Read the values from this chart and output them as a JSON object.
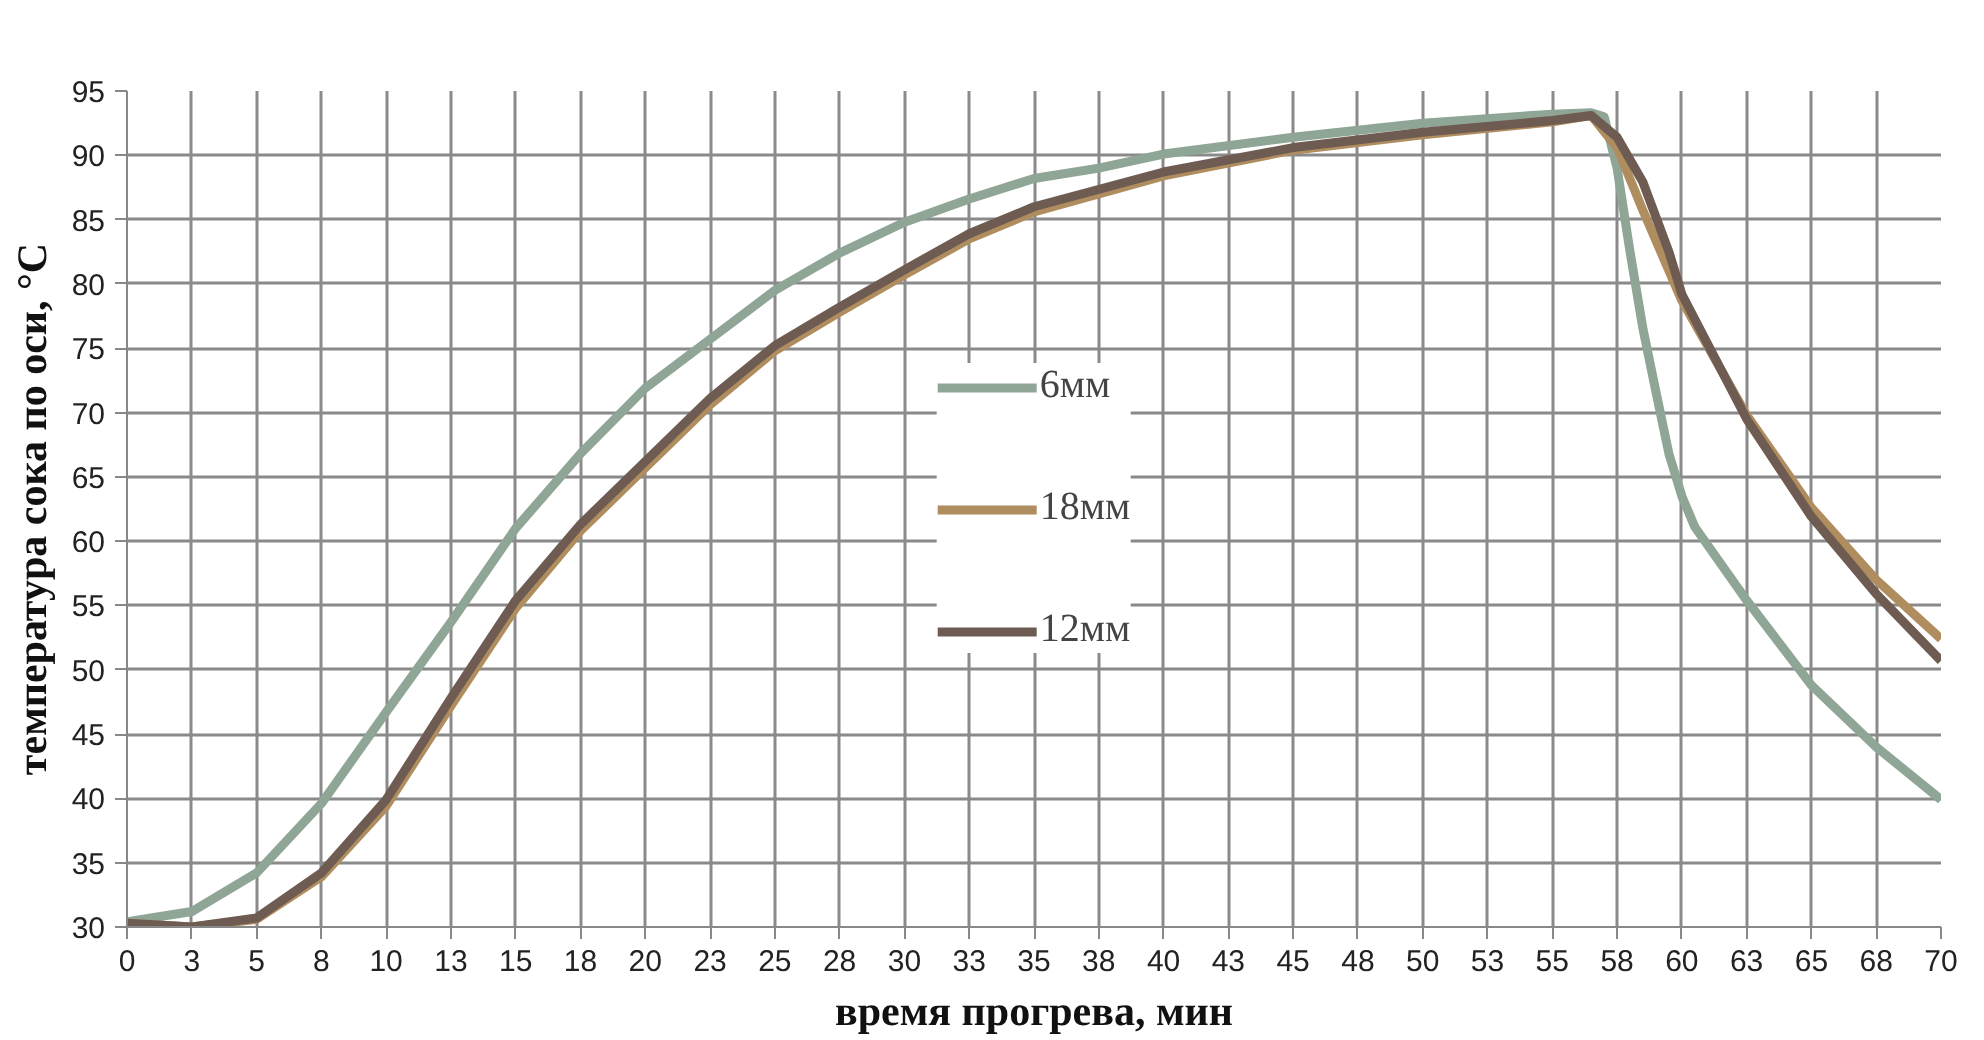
{
  "chart_data": {
    "type": "line",
    "xlabel": "время прогрева, мин",
    "ylabel": "температура сока по оси, °С",
    "xlim": [
      0,
      70
    ],
    "ylim": [
      30,
      95
    ],
    "xticks": [
      0,
      {
        "value": 2.5,
        "label": "3"
      },
      5,
      {
        "value": 7.5,
        "label": "8"
      },
      10,
      {
        "value": 12.5,
        "label": "13"
      },
      15,
      {
        "value": 17.5,
        "label": "18"
      },
      20,
      {
        "value": 22.5,
        "label": "23"
      },
      25,
      {
        "value": 27.5,
        "label": "28"
      },
      30,
      {
        "value": 32.5,
        "label": "33"
      },
      35,
      {
        "value": 37.5,
        "label": "38"
      },
      40,
      {
        "value": 42.5,
        "label": "43"
      },
      45,
      {
        "value": 47.5,
        "label": "48"
      },
      50,
      {
        "value": 52.5,
        "label": "53"
      },
      55,
      {
        "value": 57.5,
        "label": "58"
      },
      60,
      {
        "value": 62.5,
        "label": "63"
      },
      65,
      {
        "value": 67.5,
        "label": "68"
      },
      70
    ],
    "yticks": [
      30,
      35,
      40,
      45,
      50,
      55,
      60,
      65,
      70,
      75,
      80,
      85,
      90,
      95
    ],
    "grid": true,
    "legend": "center",
    "line_style": "solid",
    "series": [
      {
        "name": "6мм",
        "color": "#8fa596",
        "x": [
          0,
          2.5,
          5,
          7.5,
          10,
          12.5,
          15,
          17.5,
          20,
          22.5,
          25,
          27.5,
          30,
          32.5,
          35,
          37.5,
          40,
          45,
          50,
          55,
          56.5,
          57,
          57.5,
          58,
          58.5,
          59,
          59.5,
          60,
          60.5,
          62.5,
          65,
          67.5,
          70
        ],
        "values": [
          30.4,
          31.2,
          34.2,
          39.6,
          46.7,
          53.7,
          61,
          66.8,
          71.9,
          75.7,
          79.5,
          82.4,
          84.8,
          86.6,
          88.2,
          89.0,
          90.1,
          91.4,
          92.5,
          93.2,
          93.3,
          93.0,
          89.0,
          82.5,
          76.5,
          71.6,
          66.8,
          63.5,
          61.1,
          55.4,
          48.8,
          44.0,
          39.9
        ]
      },
      {
        "name": "18мм",
        "color": "#b08d5f",
        "x": [
          0,
          2.5,
          5,
          7.5,
          10,
          12.5,
          15,
          17.5,
          20,
          22.5,
          25,
          27.5,
          30,
          32.5,
          35,
          40,
          45,
          50,
          55,
          56.5,
          57.5,
          58.5,
          60,
          62.5,
          65,
          67.5,
          70
        ],
        "values": [
          30.3,
          30.0,
          30.6,
          33.9,
          39.4,
          47.2,
          54.8,
          60.8,
          65.7,
          70.6,
          74.8,
          77.8,
          80.7,
          83.5,
          85.6,
          88.4,
          90.4,
          91.6,
          92.6,
          93.1,
          90.6,
          85.7,
          78.7,
          69.8,
          62.6,
          57.0,
          52.4
        ]
      },
      {
        "name": "12мм",
        "color": "#6e5c52",
        "x": [
          0,
          2.5,
          5,
          7.5,
          10,
          12.5,
          15,
          17.5,
          20,
          22.5,
          25,
          27.5,
          30,
          32.5,
          35,
          40,
          45,
          50,
          55,
          56.5,
          57.5,
          58.5,
          59.5,
          60,
          62.5,
          65,
          67.5,
          70
        ],
        "values": [
          30.3,
          30.0,
          30.7,
          34.2,
          39.9,
          47.8,
          55.4,
          61.3,
          66.2,
          71.1,
          75.2,
          78.2,
          81.1,
          83.9,
          86.0,
          88.7,
          90.6,
          91.8,
          92.7,
          93.1,
          91.4,
          87.9,
          82.5,
          79.2,
          69.5,
          61.9,
          55.9,
          50.7
        ]
      }
    ]
  }
}
